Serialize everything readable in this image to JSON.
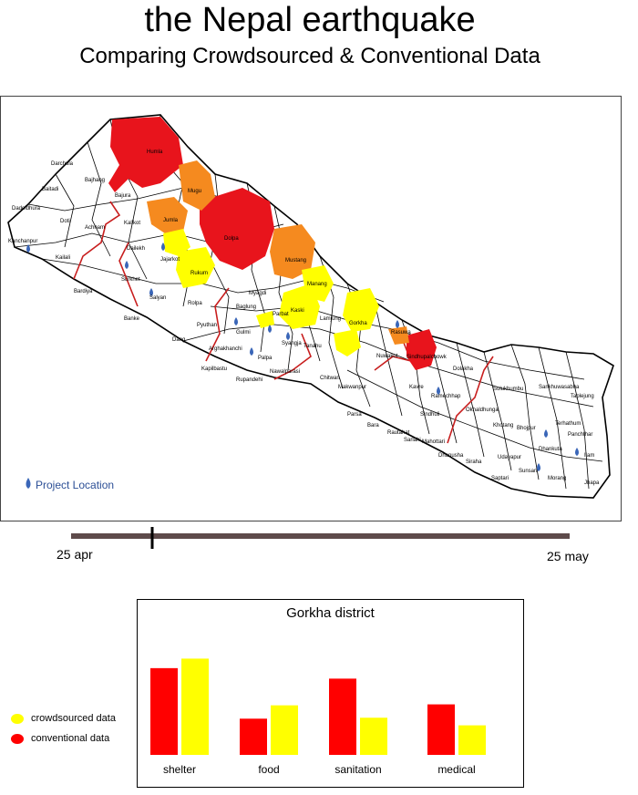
{
  "title": "the Nepal earthquake",
  "subtitle": "Comparing Crowdsourced & Conventional Data",
  "map": {
    "legend_label": "Project Location",
    "legend_icon": "water-drop-icon",
    "district_labels": [
      "Humla",
      "Darchula",
      "Bajhang",
      "Baitadi",
      "Mugu",
      "Bajura",
      "Dadeldhura",
      "Doti",
      "Achham",
      "Jumla",
      "Kalikot",
      "Dolpa",
      "Kanchanpur",
      "Kailali",
      "Dailekh",
      "Jajarkot",
      "Mustang",
      "Surkhet",
      "Rukum",
      "Bardiya",
      "Salyan",
      "Manang",
      "Myagdi",
      "Rolpa",
      "Banke",
      "Baglung",
      "Kaski",
      "Lamjung",
      "Gorkha",
      "Rasuwa",
      "Dang",
      "Pyuthan",
      "Gulmi",
      "Parbat",
      "Syangja",
      "Tanahu",
      "Arghakhanchi",
      "Palpa",
      "Nuwakot",
      "Sindhupalchowk",
      "Kapilbastu",
      "Rupandehi",
      "Nawalparasi",
      "Chitwan",
      "Makwanpur",
      "Dolakha",
      "Solukhumbu",
      "Sankhuwasabha",
      "Taplejung",
      "Parsa",
      "Bara",
      "Rautahat",
      "Sarlahi",
      "Dhanusha",
      "Mahottari",
      "Sindhuli",
      "Okhaldhunga",
      "Khotang",
      "Bhojpur",
      "Terhathum",
      "Panchthar",
      "Ilam",
      "Jhapa",
      "Morang",
      "Sunsari",
      "Siraha",
      "Saptari",
      "Udayapur",
      "Dhankuta",
      "Kavre",
      "Ramechhap"
    ],
    "impact_colors": {
      "high": "#e8141c",
      "medium": "#f58a1f",
      "low": "#ffff00"
    },
    "border_color": "#c81e1e"
  },
  "timeline": {
    "start_label": "25 apr",
    "end_label": "25 may",
    "position": 0.16,
    "bar_color": "#5e4b4b"
  },
  "chart_data": {
    "type": "bar",
    "title": "Gorkha district",
    "categories": [
      "shelter",
      "food",
      "sanitation",
      "medical"
    ],
    "series": [
      {
        "name": "conventional data",
        "color": "#ff0000",
        "values": [
          91,
          38,
          80,
          53
        ]
      },
      {
        "name": "crowdsourced data",
        "color": "#ffff00",
        "values": [
          101,
          52,
          39,
          31
        ]
      }
    ],
    "ylim": [
      0,
      110
    ],
    "grid": false,
    "legend": "left, outside chart"
  }
}
